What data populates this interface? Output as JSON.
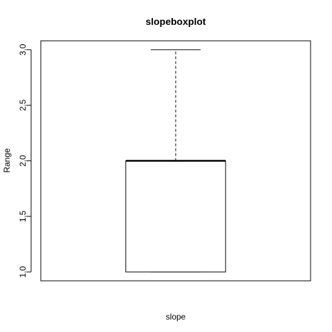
{
  "chart_data": {
    "type": "boxplot",
    "title": "slopeboxplot",
    "xlabel": "slope",
    "ylabel": "Range",
    "ylim": [
      0.92,
      3.08
    ],
    "yticks": [
      "1.0",
      "1.5",
      "2.0",
      "2.5",
      "3.0"
    ],
    "series": [
      {
        "min": 1.0,
        "q1": 1.0,
        "median": 2.0,
        "q3": 2.0,
        "max": 3.0
      }
    ],
    "grid": false,
    "legend": "none"
  }
}
